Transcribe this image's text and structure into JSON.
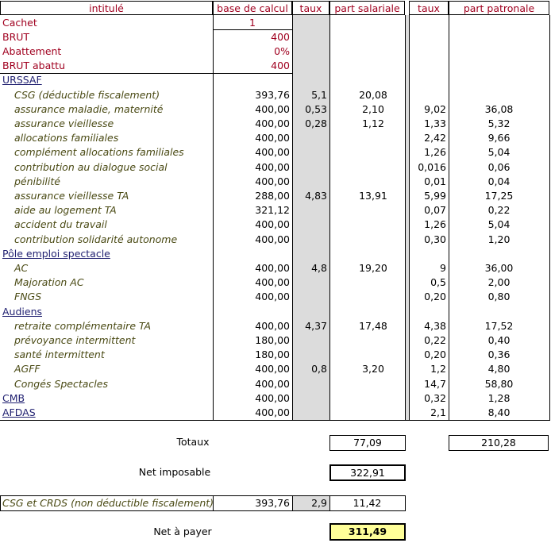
{
  "header": [
    "intitulé",
    "base de calcul",
    "taux",
    "part salariale",
    "taux",
    "part patronale"
  ],
  "rows": [
    {
      "style": "input",
      "label": "Cachet",
      "base": "1"
    },
    {
      "style": "input",
      "label": "BRUT",
      "base": "400"
    },
    {
      "style": "input",
      "label": "Abattement",
      "base": "0%"
    },
    {
      "style": "input",
      "label": "BRUT abattu",
      "base": "400"
    },
    {
      "style": "section",
      "label": "URSSAF"
    },
    {
      "style": "item",
      "label": "CSG (déductible fiscalement)",
      "base": "393,76",
      "taux_salarial": "5,1",
      "part_salariale": "20,08"
    },
    {
      "style": "item",
      "label": "assurance maladie, maternité",
      "base": "400,00",
      "taux_salarial": "0,53",
      "part_salariale": "2,10",
      "taux_patronal": "9,02",
      "part_patronale": "36,08"
    },
    {
      "style": "item",
      "label": "assurance vieillesse",
      "base": "400,00",
      "taux_salarial": "0,28",
      "part_salariale": "1,12",
      "taux_patronal": "1,33",
      "part_patronale": "5,32"
    },
    {
      "style": "item",
      "label": "allocations familiales",
      "base": "400,00",
      "taux_patronal": "2,42",
      "part_patronale": "9,66"
    },
    {
      "style": "item",
      "label": "complément allocations familiales",
      "base": "400,00",
      "taux_patronal": "1,26",
      "part_patronale": "5,04"
    },
    {
      "style": "item",
      "label": "contribution au dialogue social",
      "base": "400,00",
      "taux_patronal": "0,016",
      "part_patronale": "0,06"
    },
    {
      "style": "item",
      "label": "pénibilité",
      "base": "400,00",
      "taux_patronal": "0,01",
      "part_patronale": "0,04"
    },
    {
      "style": "item",
      "label": "assurance vieillesse TA",
      "base": "288,00",
      "taux_salarial": "4,83",
      "part_salariale": "13,91",
      "taux_patronal": "5,99",
      "part_patronale": "17,25"
    },
    {
      "style": "item",
      "label": "aide au logement TA",
      "base": "321,12",
      "taux_patronal": "0,07",
      "part_patronale": "0,22"
    },
    {
      "style": "item",
      "label": "accident du travail",
      "base": "400,00",
      "taux_patronal": "1,26",
      "part_patronale": "5,04"
    },
    {
      "style": "item",
      "label": "contribution solidarité autonome",
      "base": "400,00",
      "taux_patronal": "0,30",
      "part_patronale": "1,20"
    },
    {
      "style": "section",
      "label": "Pôle emploi spectacle"
    },
    {
      "style": "item",
      "label": "AC",
      "base": "400,00",
      "taux_salarial": "4,8",
      "part_salariale": "19,20",
      "taux_patronal": "9",
      "part_patronale": "36,00"
    },
    {
      "style": "item",
      "label": "Majoration AC",
      "base": "400,00",
      "taux_patronal": "0,5",
      "part_patronale": "2,00"
    },
    {
      "style": "item",
      "label": "FNGS",
      "base": "400,00",
      "taux_patronal": "0,20",
      "part_patronale": "0,80"
    },
    {
      "style": "section",
      "label": "Audiens"
    },
    {
      "style": "item",
      "label": "retraite complémentaire TA",
      "base": "400,00",
      "taux_salarial": "4,37",
      "part_salariale": "17,48",
      "taux_patronal": "4,38",
      "part_patronale": "17,52"
    },
    {
      "style": "item",
      "label": "prévoyance intermittent",
      "base": "180,00",
      "taux_patronal": "0,22",
      "part_patronale": "0,40"
    },
    {
      "style": "item",
      "label": "santé intermittent",
      "base": "180,00",
      "taux_patronal": "0,20",
      "part_patronale": "0,36"
    },
    {
      "style": "item",
      "label": "AGFF",
      "base": "400,00",
      "taux_salarial": "0,8",
      "part_salariale": "3,20",
      "taux_patronal": "1,2",
      "part_patronale": "4,80"
    },
    {
      "style": "item",
      "label": "Congés Spectacles",
      "base": "400,00",
      "taux_patronal": "14,7",
      "part_patronale": "58,80"
    },
    {
      "style": "section",
      "label": "CMB",
      "base": "400,00",
      "taux_patronal": "0,32",
      "part_patronale": "1,28"
    },
    {
      "style": "section",
      "label": "AFDAS",
      "base": "400,00",
      "taux_patronal": "2,1",
      "part_patronale": "8,40"
    }
  ],
  "totals": {
    "label": "Totaux",
    "part_salariale": "77,09",
    "part_patronale": "210,28"
  },
  "net_imposable": {
    "label": "Net imposable",
    "value": "322,91"
  },
  "csg_crds": {
    "label": "CSG et CRDS (non déductible fiscalement)",
    "base": "393,76",
    "taux": "2,9",
    "part_salariale": "11,42"
  },
  "net_a_payer": {
    "label": "Net à payer",
    "value": "311,49"
  }
}
